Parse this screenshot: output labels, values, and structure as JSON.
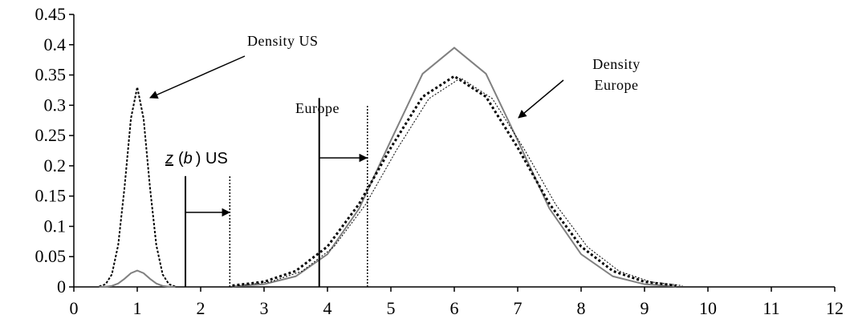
{
  "chart_data": {
    "type": "line",
    "xlim": [
      0,
      12
    ],
    "xticks": [
      0,
      1,
      2,
      3,
      4,
      5,
      6,
      7,
      8,
      9,
      10,
      11,
      12
    ],
    "ylim": [
      0,
      0.45
    ],
    "yticks": [
      0,
      0.05,
      0.1,
      0.15,
      0.2,
      0.25,
      0.3,
      0.35,
      0.4,
      0.45
    ],
    "series": [
      {
        "color": "#000000",
        "dash": "3,2",
        "width": 2,
        "x": [
          0.4,
          0.5,
          0.6,
          0.7,
          0.8,
          0.9,
          1.0,
          1.1,
          1.2,
          1.3,
          1.4,
          1.5,
          1.6
        ],
        "values": [
          0.0007,
          0.0044,
          0.0207,
          0.0695,
          0.165,
          0.278,
          0.33,
          0.278,
          0.165,
          0.0695,
          0.0207,
          0.0044,
          0.0007
        ]
      },
      {
        "color": "#808080",
        "dash": "none",
        "width": 2,
        "x": [
          0.4,
          0.5,
          0.6,
          0.7,
          0.8,
          0.9,
          1.0,
          1.1,
          1.2,
          1.3,
          1.4,
          1.5,
          1.6
        ],
        "values": [
          0,
          0.0004,
          0.0017,
          0.0057,
          0.0135,
          0.0227,
          0.027,
          0.0227,
          0.0135,
          0.0057,
          0.0017,
          0.0004,
          0
        ]
      },
      {
        "color": "#808080",
        "dash": "none",
        "width": 2,
        "x": [
          2.5,
          3,
          3.5,
          4,
          4.5,
          5,
          5.5,
          6,
          6.5,
          7,
          7.5,
          8,
          8.5,
          9,
          9.5
        ],
        "values": [
          0.0009,
          0.0044,
          0.0175,
          0.054,
          0.1295,
          0.242,
          0.352,
          0.395,
          0.352,
          0.242,
          0.1295,
          0.054,
          0.0175,
          0.0044,
          0.0009
        ]
      },
      {
        "color": "#000000",
        "dash": "3,3",
        "width": 3,
        "x": [
          2.5,
          3,
          3.5,
          4,
          4.5,
          5,
          5.5,
          6,
          6.5,
          7,
          7.5,
          8,
          8.5,
          9,
          9.5
        ],
        "values": [
          0.0022,
          0.0085,
          0.0263,
          0.0667,
          0.1373,
          0.23,
          0.314,
          0.348,
          0.314,
          0.23,
          0.1373,
          0.0667,
          0.0263,
          0.0085,
          0.0022
        ]
      },
      {
        "color": "#000000",
        "dash": "2,2",
        "width": 1,
        "x": [
          2.6,
          3.1,
          3.6,
          4.1,
          4.6,
          5.1,
          5.6,
          6.1,
          6.6,
          7.1,
          7.6,
          8.1,
          8.6,
          9.1,
          9.6
        ],
        "values": [
          0.0021,
          0.0083,
          0.026,
          0.066,
          0.136,
          0.228,
          0.311,
          0.345,
          0.311,
          0.228,
          0.136,
          0.066,
          0.026,
          0.0083,
          0.0021
        ]
      }
    ],
    "thresholds": [
      {
        "x": 1.76,
        "height": 0.183,
        "dash": "none"
      },
      {
        "x": 2.46,
        "height": 0.183,
        "dash": "2,2"
      },
      {
        "x": 3.87,
        "height": 0.312,
        "dash": "none"
      },
      {
        "x": 4.63,
        "height": 0.299,
        "dash": "2,2"
      }
    ],
    "annotations": {
      "density_us": "Density US",
      "europe": "Europe",
      "density_europe": [
        "Density",
        "Europe"
      ],
      "zb": [
        "z",
        "(",
        "b",
        ") US"
      ]
    }
  }
}
